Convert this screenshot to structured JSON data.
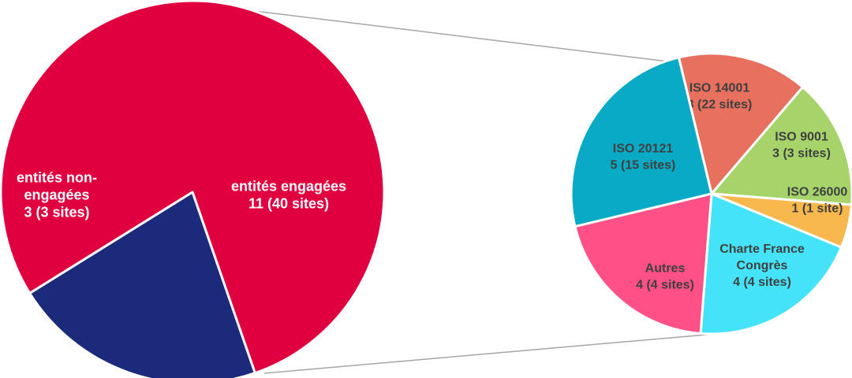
{
  "chart_data": [
    {
      "type": "pie",
      "slices": [
        {
          "label": [
            "entités engagées",
            "11 (40 sites)"
          ],
          "value": 11,
          "sites": 40,
          "color": "#E0003F",
          "label_color": "#FFFFFF"
        },
        {
          "label": [
            "entités non-",
            "engagées",
            "3 (3 sites)"
          ],
          "value": 3,
          "sites": 3,
          "color": "#1B2A7B",
          "label_color": "#FFFFFF"
        }
      ]
    },
    {
      "type": "pie",
      "slices": [
        {
          "label": [
            "ISO 14001",
            "3 (22 sites)"
          ],
          "value": 3,
          "sites": 22,
          "color": "#E8705E",
          "label_color": "#404040"
        },
        {
          "label": [
            "ISO 9001",
            "3 (3 sites)"
          ],
          "value": 3,
          "sites": 3,
          "color": "#A6D46B",
          "label_color": "#404040"
        },
        {
          "label": [
            "ISO 26000",
            "1 (1 site)"
          ],
          "value": 1,
          "sites": 1,
          "color": "#F8B84E",
          "label_color": "#404040"
        },
        {
          "label": [
            "Charte France",
            "Congrès",
            "4 (4 sites)"
          ],
          "value": 4,
          "sites": 4,
          "color": "#45E3F9",
          "label_color": "#404040"
        },
        {
          "label": [
            "Autres",
            "4 (4 sites)"
          ],
          "value": 4,
          "sites": 4,
          "color": "#FF5087",
          "label_color": "#404040"
        },
        {
          "label": [
            "ISO 20121",
            "5 (15 sites)"
          ],
          "value": 5,
          "sites": 15,
          "color": "#09AAC6",
          "label_color": "#404040"
        }
      ]
    }
  ]
}
